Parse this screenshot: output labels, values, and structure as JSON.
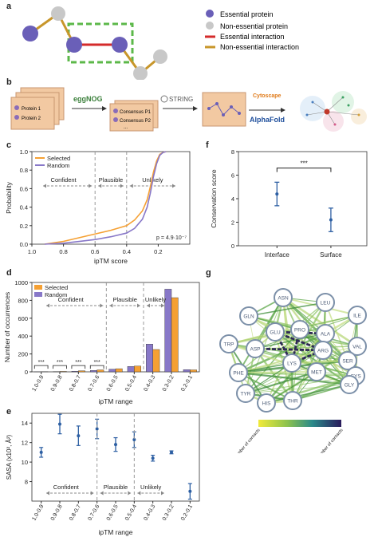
{
  "panels": {
    "a": {
      "letter": "a",
      "legend": [
        {
          "label": "Essential protein",
          "kind": "node",
          "color": "#6a5fb8"
        },
        {
          "label": "Non-essential protein",
          "kind": "node",
          "color": "#c8c8c8"
        },
        {
          "label": "Essential interaction",
          "kind": "edge",
          "color": "#d42b2b"
        },
        {
          "label": "Non-essential interaction",
          "kind": "edge",
          "color": "#c8962a"
        }
      ]
    },
    "b": {
      "letter": "b",
      "protein1": "Protein 1",
      "protein2": "Protein 2",
      "eggnog": "eggNOG",
      "consensus1": "Consensus P1",
      "consensus2": "Consensus P2",
      "ellipsis": "...",
      "string": "STRING",
      "cytoscape": "Cytoscape",
      "alphafold": "AlphaFold"
    },
    "c": {
      "letter": "c",
      "pvalue": "p = 4.9·10⁻⁷"
    },
    "d": {
      "letter": "d"
    },
    "e": {
      "letter": "e"
    },
    "f": {
      "letter": "f"
    },
    "g": {
      "letter": "g",
      "colorbar_low": "Low number of contacts",
      "colorbar_high": "High number of contacts"
    }
  },
  "colors": {
    "selected": "#f5a033",
    "random": "#8878c8",
    "errorbar": "#2d5fa3",
    "essential_node": "#6a5fb8",
    "nonessential_node": "#c8c8c8",
    "essential_edge": "#d42b2b",
    "nonessential_edge": "#c8962a",
    "highlight_box": "#5cb84a"
  },
  "chart_data": [
    {
      "id": "c",
      "type": "line",
      "xlabel": "ipTM score",
      "ylabel": "Probability",
      "xlim": [
        1.0,
        0.0
      ],
      "ylim": [
        0.0,
        1.0
      ],
      "xticks": [
        "1.0",
        "0.8",
        "0.6",
        "0.4",
        "0.2"
      ],
      "yticks": [
        "0.0",
        "0.2",
        "0.4",
        "0.6",
        "0.8",
        "1.0"
      ],
      "regions": [
        "Confident",
        "Plausible",
        "Unlikely"
      ],
      "region_dividers": [
        0.6,
        0.4
      ],
      "legend_position": "top-left",
      "series": [
        {
          "name": "Selected",
          "x": [
            0.92,
            0.8,
            0.7,
            0.6,
            0.5,
            0.4,
            0.35,
            0.3,
            0.27,
            0.25,
            0.23,
            0.21,
            0.19,
            0.17,
            0.15
          ],
          "values": [
            0.0,
            0.03,
            0.07,
            0.11,
            0.15,
            0.2,
            0.26,
            0.36,
            0.48,
            0.62,
            0.78,
            0.9,
            0.97,
            0.99,
            1.0
          ]
        },
        {
          "name": "Random",
          "x": [
            0.92,
            0.8,
            0.7,
            0.6,
            0.5,
            0.4,
            0.35,
            0.3,
            0.27,
            0.25,
            0.23,
            0.21,
            0.19,
            0.17,
            0.15
          ],
          "values": [
            0.0,
            0.01,
            0.03,
            0.05,
            0.08,
            0.12,
            0.17,
            0.27,
            0.4,
            0.55,
            0.73,
            0.87,
            0.96,
            0.99,
            1.0
          ]
        }
      ]
    },
    {
      "id": "d",
      "type": "bar",
      "xlabel": "ipTM range",
      "ylabel": "Number of occurrences",
      "ylim": [
        0,
        1000
      ],
      "yticks": [
        "0",
        "200",
        "400",
        "600",
        "800",
        "1000"
      ],
      "categories": [
        "1.0-0.9",
        "0.9-0.8",
        "0.8-0.7",
        "0.7-0.6",
        "0.6-0.5",
        "0.5-0.4",
        "0.4-0.3",
        "0.3-0.2",
        "0.2-0.1"
      ],
      "regions": [
        "Confident",
        "Plausible",
        "Unlikely"
      ],
      "significance": [
        "***",
        "***",
        "***",
        "***"
      ],
      "legend_position": "top-left",
      "series": [
        {
          "name": "Selected",
          "values": [
            2,
            5,
            12,
            22,
            35,
            65,
            250,
            830,
            22
          ]
        },
        {
          "name": "Random",
          "values": [
            1,
            3,
            7,
            16,
            30,
            60,
            310,
            925,
            25
          ]
        }
      ]
    },
    {
      "id": "e",
      "type": "scatter",
      "xlabel": "ipTM range",
      "ylabel": "SASA (x10², Å²)",
      "ylim": [
        6,
        15
      ],
      "yticks": [
        "8",
        "10",
        "12",
        "14"
      ],
      "categories": [
        "1.0-0.9",
        "0.9-0.8",
        "0.8-0.7",
        "0.7-0.6",
        "0.6-0.5",
        "0.5-0.4",
        "0.4-0.3",
        "0.3-0.2",
        "0.2-0.1"
      ],
      "regions": [
        "Confident",
        "Plausible",
        "Unlikely"
      ],
      "values": [
        11.0,
        13.9,
        12.7,
        13.4,
        11.8,
        12.3,
        10.4,
        11.0,
        7.0
      ],
      "errors": [
        0.5,
        1.0,
        1.0,
        1.0,
        0.7,
        0.8,
        0.3,
        0.15,
        0.8
      ]
    },
    {
      "id": "f",
      "type": "scatter",
      "ylabel": "Conservation score",
      "ylim": [
        0,
        8
      ],
      "yticks": [
        "0",
        "2",
        "4",
        "6",
        "8"
      ],
      "categories": [
        "Interface",
        "Surface"
      ],
      "values": [
        4.4,
        2.2
      ],
      "errors": [
        1.0,
        1.0
      ],
      "significance": "***"
    }
  ],
  "network_g": {
    "nodes": [
      "ASN",
      "LEU",
      "GLN",
      "ILE",
      "GLU",
      "PRO",
      "ALA",
      "TRP",
      "ASP",
      "VAL",
      "ARG",
      "SER",
      "PHE",
      "CYS",
      "LYS",
      "MET",
      "GLY",
      "TYR",
      "HIS",
      "THR"
    ]
  }
}
